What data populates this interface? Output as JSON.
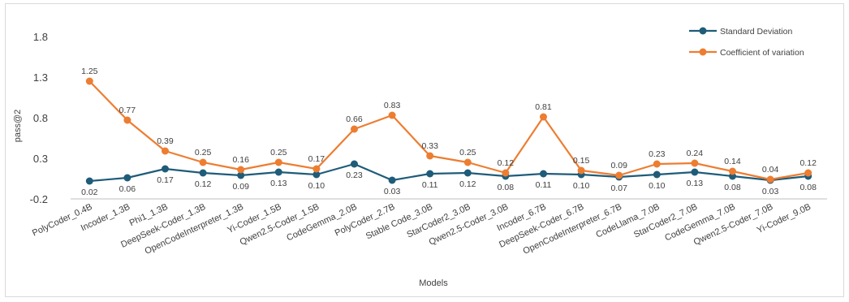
{
  "chart_data": {
    "type": "line",
    "title": "",
    "xlabel": "Models",
    "ylabel": "pass@2",
    "ylim": [
      -0.2,
      1.8
    ],
    "yticks": [
      -0.2,
      0.3,
      0.8,
      1.3,
      1.8
    ],
    "y_tick_labels": [
      "-0.2",
      "0.3",
      "0.8",
      "1.3",
      "1.8"
    ],
    "grid": false,
    "legend_position": "top-right",
    "categories": [
      "PolyCoder_0.4B",
      "Incoder_1.3B",
      "Phi1_1.3B",
      "DeepSeek-Coder_1.3B",
      "OpenCodeInterpreter_1.3B",
      "Yi-Coder_1.5B",
      "Qwen2.5-Coder_1.5B",
      "CodeGemma_2.0B",
      "PolyCoder_2.7B",
      "Stable Code_3.0B",
      "StarCoder2_3.0B",
      "Qwen2.5-Coder_3.0B",
      "Incoder_6.7B",
      "DeepSeek-Coder_6.7B",
      "OpenCodeInterpreter_6.7B",
      "CodeLlama_7.0B",
      "StarCoder2_7.0B",
      "CodeGemma_7.0B",
      "Qwen2.5-Coder_7.0B",
      "Yi-Coder_9.0B"
    ],
    "series": [
      {
        "name": "Standard Deviation",
        "color": "#1f5c7a",
        "values": [
          0.02,
          0.06,
          0.17,
          0.12,
          0.09,
          0.13,
          0.1,
          0.23,
          0.03,
          0.11,
          0.12,
          0.08,
          0.11,
          0.1,
          0.07,
          0.1,
          0.13,
          0.08,
          0.03,
          0.08
        ],
        "labels": [
          "0.02",
          "0.06",
          "0.17",
          "0.12",
          "0.09",
          "0.13",
          "0.10",
          "0.23",
          "0.03",
          "0.11",
          "0.12",
          "0.08",
          "0.11",
          "0.10",
          "0.07",
          "0.10",
          "0.13",
          "0.08",
          "0.03",
          "0.08"
        ]
      },
      {
        "name": "Coefficient of variation",
        "color": "#ed7d31",
        "values": [
          1.25,
          0.77,
          0.39,
          0.25,
          0.16,
          0.25,
          0.17,
          0.66,
          0.83,
          0.33,
          0.25,
          0.12,
          0.81,
          0.15,
          0.09,
          0.23,
          0.24,
          0.14,
          0.04,
          0.12
        ],
        "labels": [
          "1.25",
          "0.77",
          "0.39",
          "0.25",
          "0.16",
          "0.25",
          "0.17",
          "0.66",
          "0.83",
          "0.33",
          "0.25",
          "0.12",
          "0.81",
          "0.15",
          "0.09",
          "0.23",
          "0.24",
          "0.14",
          "0.04",
          "0.12"
        ]
      }
    ]
  }
}
